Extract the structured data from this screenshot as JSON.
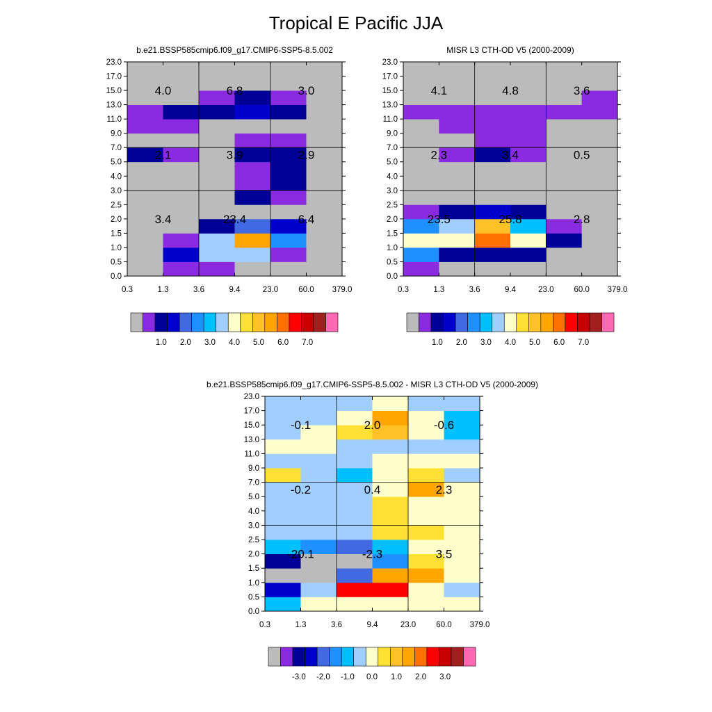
{
  "figure_title": "Tropical E Pacific JJA",
  "palette": [
    "#bbbbbb",
    "#8a2be2",
    "#000096",
    "#0000cd",
    "#4169e1",
    "#1e90ff",
    "#00bfff",
    "#a0cfff",
    "#ffffcc",
    "#ffe135",
    "#ffc125",
    "#ffa500",
    "#ff7000",
    "#ff0000",
    "#c80000",
    "#a02020",
    "#ff69b4"
  ],
  "chart_data": [
    {
      "type": "heatmap",
      "title": "b.e21.BSSP585cmip6.f09_g17.CMIP6-SSP5-8.5.002",
      "x_tick_labels": [
        "0.3",
        "1.3",
        "3.6",
        "9.4",
        "23.0",
        "60.0",
        "379.0"
      ],
      "y_tick_labels": [
        "0.0",
        "0.5",
        "1.0",
        "1.5",
        "2.0",
        "2.5",
        "3.0",
        "4.0",
        "5.0",
        "7.0",
        "9.0",
        "11.0",
        "13.0",
        "15.0",
        "17.0",
        "23.0"
      ],
      "cell_color_index_rows_bottom_to_top": [
        [
          0,
          1,
          1,
          0,
          0,
          0
        ],
        [
          0,
          3,
          7,
          7,
          1,
          0
        ],
        [
          0,
          1,
          7,
          11,
          5,
          0
        ],
        [
          0,
          0,
          2,
          4,
          3,
          0
        ],
        [
          0,
          0,
          0,
          0,
          0,
          0
        ],
        [
          0,
          0,
          0,
          2,
          1,
          0
        ],
        [
          0,
          0,
          0,
          1,
          2,
          0
        ],
        [
          0,
          0,
          0,
          1,
          2,
          0
        ],
        [
          2,
          1,
          0,
          2,
          2,
          0
        ],
        [
          0,
          0,
          0,
          1,
          1,
          0
        ],
        [
          1,
          1,
          0,
          0,
          0,
          0
        ],
        [
          1,
          2,
          2,
          3,
          2,
          0
        ],
        [
          0,
          0,
          1,
          2,
          1,
          0
        ],
        [
          0,
          0,
          0,
          0,
          0,
          0
        ],
        [
          0,
          0,
          0,
          0,
          0,
          0
        ]
      ],
      "block_values": [
        {
          "label": "4.0",
          "col": 1,
          "row": 13
        },
        {
          "label": "6.8",
          "col": 3,
          "row": 13
        },
        {
          "label": "3.0",
          "col": 5,
          "row": 13
        },
        {
          "label": "2.1",
          "col": 1,
          "row": 8.5
        },
        {
          "label": "3.9",
          "col": 3,
          "row": 8.5
        },
        {
          "label": "2.9",
          "col": 5,
          "row": 8.5
        },
        {
          "label": "3.4",
          "col": 1,
          "row": 4
        },
        {
          "label": "23.4",
          "col": 3,
          "row": 4
        },
        {
          "label": "6.4",
          "col": 5,
          "row": 4
        }
      ],
      "colorbar_labels": [
        "1.0",
        "2.0",
        "3.0",
        "4.0",
        "5.0",
        "6.0",
        "7.0"
      ]
    },
    {
      "type": "heatmap",
      "title": "MISR L3 CTH-OD V5 (2000-2009)",
      "x_tick_labels": [
        "0.3",
        "1.3",
        "3.6",
        "9.4",
        "23.0",
        "60.0",
        "379.0"
      ],
      "y_tick_labels": [
        "0.0",
        "0.5",
        "1.0",
        "1.5",
        "2.0",
        "2.5",
        "3.0",
        "4.0",
        "5.0",
        "7.0",
        "9.0",
        "11.0",
        "13.0",
        "15.0",
        "17.0",
        "23.0"
      ],
      "cell_color_index_rows_bottom_to_top": [
        [
          1,
          0,
          0,
          0,
          0,
          0
        ],
        [
          5,
          2,
          2,
          2,
          0,
          0
        ],
        [
          8,
          8,
          12,
          8,
          2,
          0
        ],
        [
          5,
          7,
          10,
          6,
          1,
          0
        ],
        [
          1,
          2,
          3,
          2,
          0,
          0
        ],
        [
          0,
          0,
          0,
          0,
          0,
          0
        ],
        [
          0,
          0,
          0,
          0,
          0,
          0
        ],
        [
          0,
          0,
          0,
          0,
          0,
          0
        ],
        [
          0,
          1,
          2,
          1,
          0,
          0
        ],
        [
          0,
          0,
          1,
          1,
          0,
          0
        ],
        [
          0,
          1,
          1,
          1,
          0,
          0
        ],
        [
          1,
          1,
          1,
          1,
          1,
          1
        ],
        [
          0,
          0,
          0,
          0,
          0,
          1
        ],
        [
          0,
          0,
          0,
          0,
          0,
          0
        ],
        [
          0,
          0,
          0,
          0,
          0,
          0
        ]
      ],
      "block_values": [
        {
          "label": "4.1",
          "col": 1,
          "row": 13
        },
        {
          "label": "4.8",
          "col": 3,
          "row": 13
        },
        {
          "label": "3.6",
          "col": 5,
          "row": 13
        },
        {
          "label": "2.3",
          "col": 1,
          "row": 8.5
        },
        {
          "label": "3.4",
          "col": 3,
          "row": 8.5
        },
        {
          "label": "0.5",
          "col": 5,
          "row": 8.5
        },
        {
          "label": "23.5",
          "col": 1,
          "row": 4
        },
        {
          "label": "25.8",
          "col": 3,
          "row": 4
        },
        {
          "label": "2.8",
          "col": 5,
          "row": 4
        }
      ],
      "colorbar_labels": [
        "1.0",
        "2.0",
        "3.0",
        "4.0",
        "5.0",
        "6.0",
        "7.0"
      ]
    },
    {
      "type": "heatmap",
      "title": "b.e21.BSSP585cmip6.f09_g17.CMIP6-SSP5-8.5.002 - MISR L3 CTH-OD V5 (2000-2009)",
      "x_tick_labels": [
        "0.3",
        "1.3",
        "3.6",
        "9.4",
        "23.0",
        "60.0",
        "379.0"
      ],
      "y_tick_labels": [
        "0.0",
        "0.5",
        "1.0",
        "1.5",
        "2.0",
        "2.5",
        "3.0",
        "4.0",
        "5.0",
        "7.0",
        "9.0",
        "11.0",
        "13.0",
        "15.0",
        "17.0",
        "23.0"
      ],
      "cell_color_index_rows_bottom_to_top": [
        [
          6,
          8,
          8,
          8,
          8,
          8
        ],
        [
          3,
          7,
          13,
          13,
          8,
          7
        ],
        [
          0,
          0,
          4,
          11,
          11,
          8
        ],
        [
          2,
          0,
          0,
          5,
          9,
          8
        ],
        [
          6,
          5,
          4,
          6,
          8,
          8
        ],
        [
          7,
          7,
          7,
          9,
          9,
          8
        ],
        [
          7,
          7,
          7,
          9,
          8,
          8
        ],
        [
          7,
          7,
          7,
          9,
          8,
          8
        ],
        [
          7,
          7,
          7,
          8,
          11,
          8
        ],
        [
          9,
          7,
          6,
          8,
          9,
          7
        ],
        [
          7,
          7,
          7,
          8,
          8,
          8
        ],
        [
          8,
          8,
          7,
          7,
          7,
          7
        ],
        [
          7,
          8,
          9,
          10,
          8,
          6
        ],
        [
          7,
          7,
          8,
          11,
          8,
          6
        ],
        [
          7,
          7,
          7,
          8,
          7,
          7
        ]
      ],
      "block_values": [
        {
          "label": "-0.1",
          "col": 1,
          "row": 13
        },
        {
          "label": "2.0",
          "col": 3,
          "row": 13
        },
        {
          "label": "-0.6",
          "col": 5,
          "row": 13
        },
        {
          "label": "-0.2",
          "col": 1,
          "row": 8.5
        },
        {
          "label": "0.4",
          "col": 3,
          "row": 8.5
        },
        {
          "label": "2.3",
          "col": 5,
          "row": 8.5
        },
        {
          "label": "-20.1",
          "col": 1,
          "row": 4
        },
        {
          "label": "-2.3",
          "col": 3,
          "row": 4
        },
        {
          "label": "3.5",
          "col": 5,
          "row": 4
        }
      ],
      "colorbar_labels": [
        "-3.0",
        "-2.0",
        "-1.0",
        "0.0",
        "1.0",
        "2.0",
        "3.0"
      ]
    }
  ]
}
